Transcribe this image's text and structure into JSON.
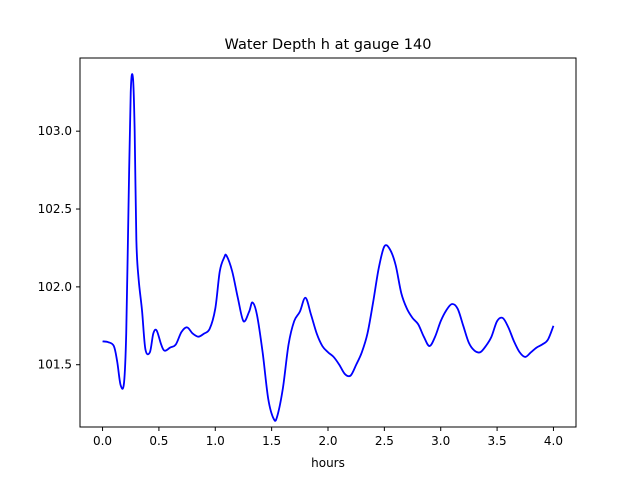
{
  "chart_data": {
    "type": "line",
    "title": "Water Depth h at gauge 140",
    "xlabel": "hours",
    "ylabel": "",
    "xlim": [
      -0.2,
      4.2
    ],
    "ylim": [
      101.1,
      103.47
    ],
    "x_ticks": [
      0.0,
      0.5,
      1.0,
      1.5,
      2.0,
      2.5,
      3.0,
      3.5,
      4.0
    ],
    "x_tick_labels": [
      "0.0",
      "0.5",
      "1.0",
      "1.5",
      "2.0",
      "2.5",
      "3.0",
      "3.5",
      "4.0"
    ],
    "y_ticks": [
      101.5,
      102.0,
      102.5,
      103.0
    ],
    "y_tick_labels": [
      "101.5",
      "102.0",
      "102.5",
      "103.0"
    ],
    "grid": false,
    "legend": "none",
    "series": [
      {
        "color": "#0000ff",
        "x": [
          0.0,
          0.05,
          0.1,
          0.13,
          0.16,
          0.19,
          0.21,
          0.23,
          0.25,
          0.27,
          0.285,
          0.3,
          0.32,
          0.35,
          0.38,
          0.42,
          0.45,
          0.48,
          0.52,
          0.55,
          0.6,
          0.65,
          0.7,
          0.75,
          0.8,
          0.85,
          0.9,
          0.95,
          1.0,
          1.04,
          1.08,
          1.1,
          1.15,
          1.2,
          1.25,
          1.3,
          1.33,
          1.37,
          1.42,
          1.47,
          1.52,
          1.55,
          1.6,
          1.65,
          1.7,
          1.75,
          1.8,
          1.85,
          1.9,
          1.95,
          2.0,
          2.05,
          2.1,
          2.15,
          2.2,
          2.25,
          2.3,
          2.35,
          2.4,
          2.45,
          2.5,
          2.55,
          2.6,
          2.65,
          2.7,
          2.75,
          2.8,
          2.85,
          2.9,
          2.95,
          3.0,
          3.05,
          3.1,
          3.15,
          3.2,
          3.25,
          3.3,
          3.35,
          3.4,
          3.45,
          3.5,
          3.55,
          3.6,
          3.65,
          3.7,
          3.75,
          3.8,
          3.85,
          3.9,
          3.95,
          4.0
        ],
        "y": [
          101.65,
          101.645,
          101.62,
          101.52,
          101.37,
          101.38,
          101.7,
          102.5,
          103.25,
          103.34,
          103.0,
          102.3,
          102.05,
          101.85,
          101.6,
          101.58,
          101.7,
          101.72,
          101.63,
          101.59,
          101.61,
          101.63,
          101.71,
          101.74,
          101.7,
          101.68,
          101.7,
          101.73,
          101.86,
          102.1,
          102.19,
          102.2,
          102.1,
          101.93,
          101.78,
          101.84,
          101.9,
          101.82,
          101.58,
          101.28,
          101.15,
          101.17,
          101.35,
          101.63,
          101.78,
          101.84,
          101.93,
          101.82,
          101.7,
          101.62,
          101.58,
          101.55,
          101.5,
          101.44,
          101.43,
          101.5,
          101.58,
          101.7,
          101.9,
          102.12,
          102.26,
          102.24,
          102.14,
          101.96,
          101.86,
          101.8,
          101.76,
          101.68,
          101.62,
          101.68,
          101.78,
          101.85,
          101.89,
          101.86,
          101.75,
          101.64,
          101.59,
          101.58,
          101.62,
          101.68,
          101.78,
          101.8,
          101.74,
          101.65,
          101.58,
          101.55,
          101.58,
          101.61,
          101.63,
          101.66,
          101.75
        ]
      }
    ]
  }
}
